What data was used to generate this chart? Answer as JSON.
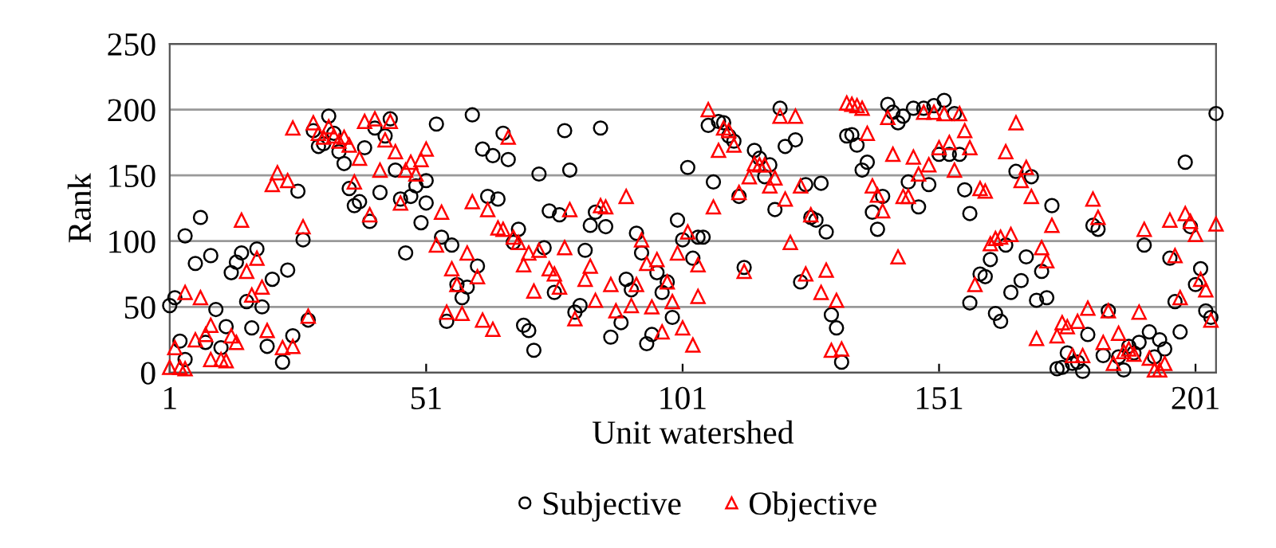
{
  "chart_data": {
    "type": "scatter",
    "xlabel": "Unit watershed",
    "ylabel": "Rank",
    "xlim": [
      1,
      205
    ],
    "xticks": [
      1,
      51,
      101,
      151,
      201
    ],
    "ylim": [
      0,
      250
    ],
    "yticks": [
      0,
      50,
      100,
      150,
      200,
      250
    ],
    "grid": "y",
    "legend": "bottom",
    "series": [
      {
        "name": "Subjective",
        "color": "#000000",
        "marker": "circle",
        "x": [
          1,
          2,
          3,
          4,
          4,
          6,
          7,
          8,
          9,
          10,
          11,
          12,
          13,
          14,
          15,
          16,
          17,
          18,
          19,
          20,
          21,
          23,
          24,
          25,
          26,
          27,
          28,
          29,
          30,
          31,
          32,
          33,
          34,
          35,
          36,
          37,
          38,
          39,
          40,
          41,
          42,
          43,
          44,
          45,
          46,
          47,
          48,
          49,
          50,
          51,
          51,
          53,
          54,
          55,
          56,
          57,
          58,
          59,
          60,
          61,
          62,
          63,
          64,
          65,
          66,
          67,
          68,
          69,
          70,
          71,
          72,
          73,
          74,
          75,
          76,
          77,
          78,
          79,
          80,
          81,
          82,
          83,
          84,
          85,
          86,
          87,
          89,
          90,
          91,
          92,
          93,
          94,
          95,
          96,
          97,
          98,
          99,
          100,
          101,
          102,
          103,
          104,
          105,
          106,
          107,
          108,
          109,
          110,
          111,
          112,
          113,
          115,
          116,
          117,
          118,
          119,
          120,
          121,
          123,
          124,
          125,
          126,
          127,
          128,
          129,
          130,
          131,
          132,
          133,
          134,
          135,
          136,
          137,
          138,
          139,
          140,
          141,
          142,
          143,
          144,
          145,
          146,
          147,
          148,
          149,
          150,
          151,
          152,
          153,
          154,
          155,
          156,
          157,
          157,
          159,
          160,
          161,
          162,
          163,
          164,
          165,
          166,
          167,
          168,
          169,
          170,
          171,
          172,
          173,
          174,
          175,
          176,
          177,
          178,
          179,
          180,
          181,
          182,
          183,
          184,
          186,
          187,
          188,
          189,
          190,
          191,
          192,
          193,
          194,
          195,
          196,
          197,
          198,
          199,
          200,
          201,
          202,
          203,
          204,
          205
        ],
        "values": [
          51,
          57,
          24,
          10,
          104,
          83,
          118,
          23,
          89,
          48,
          19,
          35,
          76,
          84,
          91,
          54,
          34,
          94,
          50,
          20,
          71,
          8,
          78,
          28,
          138,
          101,
          40,
          184,
          172,
          174,
          195,
          182,
          168,
          159,
          140,
          127,
          130,
          171,
          115,
          186,
          137,
          180,
          193,
          154,
          132,
          91,
          134,
          142,
          114,
          129,
          146,
          189,
          103,
          39,
          97,
          67,
          57,
          65,
          196,
          81,
          170,
          134,
          165,
          132,
          182,
          162,
          99,
          109,
          36,
          32,
          17,
          151,
          95,
          123,
          61,
          120,
          184,
          154,
          46,
          51,
          93,
          112,
          122,
          186,
          111,
          27,
          38,
          71,
          63,
          106,
          91,
          22,
          29,
          76,
          61,
          69,
          42,
          116,
          101,
          156,
          87,
          103,
          103,
          188,
          145,
          191,
          190,
          180,
          176,
          134,
          80,
          169,
          163,
          149,
          158,
          124,
          201,
          172,
          177,
          69,
          143,
          118,
          116,
          144,
          107,
          44,
          34,
          8,
          180,
          181,
          173,
          154,
          160,
          122,
          109,
          134,
          204,
          198,
          190,
          195,
          145,
          201,
          126,
          201,
          143,
          203,
          166,
          207,
          166,
          197,
          166,
          139,
          121,
          53,
          75,
          73,
          86,
          45,
          39,
          97,
          61,
          153,
          70,
          88,
          149,
          55,
          77,
          57,
          127,
          3,
          4,
          15,
          7,
          8,
          1,
          29,
          112,
          109,
          13,
          47,
          12,
          2,
          20,
          15,
          23,
          97,
          31,
          12,
          25,
          18,
          87,
          54,
          31,
          160,
          111,
          67,
          79,
          47,
          42,
          197
        ]
      },
      {
        "name": "Objective",
        "color": "#ff0000",
        "marker": "triangle",
        "x": [
          1,
          2,
          3,
          4,
          4,
          6,
          7,
          8,
          9,
          9,
          11,
          12,
          13,
          14,
          15,
          16,
          17,
          18,
          19,
          20,
          21,
          22,
          23,
          24,
          25,
          25,
          27,
          28,
          29,
          30,
          31,
          32,
          33,
          34,
          35,
          36,
          37,
          38,
          39,
          40,
          41,
          42,
          43,
          44,
          45,
          46,
          47,
          48,
          49,
          50,
          51,
          53,
          54,
          55,
          56,
          57,
          58,
          59,
          60,
          61,
          62,
          63,
          64,
          65,
          66,
          67,
          68,
          69,
          70,
          71,
          72,
          73,
          75,
          76,
          77,
          78,
          79,
          80,
          82,
          83,
          84,
          85,
          86,
          87,
          88,
          90,
          91,
          92,
          93,
          94,
          95,
          96,
          97,
          98,
          99,
          100,
          101,
          102,
          103,
          104,
          104,
          106,
          107,
          108,
          109,
          110,
          111,
          112,
          113,
          114,
          115,
          116,
          117,
          118,
          119,
          120,
          121,
          122,
          123,
          124,
          125,
          126,
          128,
          129,
          130,
          131,
          132,
          133,
          134,
          135,
          136,
          137,
          138,
          139,
          140,
          141,
          142,
          143,
          144,
          145,
          146,
          147,
          148,
          149,
          150,
          151,
          152,
          153,
          154,
          155,
          156,
          157,
          158,
          159,
          160,
          161,
          162,
          163,
          164,
          165,
          166,
          167,
          168,
          169,
          170,
          171,
          172,
          173,
          174,
          175,
          176,
          177,
          178,
          179,
          180,
          181,
          182,
          183,
          184,
          185,
          186,
          187,
          188,
          189,
          190,
          191,
          192,
          193,
          194,
          195,
          196,
          197,
          198,
          199,
          200,
          201,
          202,
          203,
          204,
          205
        ],
        "values": [
          4,
          19,
          4,
          3,
          61,
          25,
          57,
          29,
          36,
          10,
          10,
          9,
          28,
          23,
          116,
          77,
          59,
          87,
          65,
          32,
          143,
          152,
          19,
          146,
          20,
          186,
          111,
          43,
          190,
          182,
          179,
          187,
          180,
          176,
          179,
          173,
          145,
          163,
          191,
          120,
          193,
          154,
          177,
          191,
          168,
          129,
          154,
          160,
          151,
          162,
          170,
          97,
          122,
          46,
          79,
          67,
          45,
          91,
          130,
          73,
          40,
          124,
          33,
          110,
          109,
          179,
          103,
          99,
          82,
          91,
          62,
          93,
          79,
          75,
          65,
          95,
          124,
          41,
          71,
          81,
          55,
          127,
          126,
          67,
          47,
          134,
          51,
          67,
          101,
          83,
          50,
          86,
          31,
          69,
          54,
          91,
          34,
          107,
          21,
          58,
          82,
          200,
          126,
          169,
          186,
          184,
          173,
          137,
          77,
          149,
          159,
          158,
          158,
          142,
          148,
          195,
          132,
          99,
          195,
          142,
          75,
          120,
          61,
          78,
          17,
          55,
          18,
          205,
          204,
          203,
          201,
          182,
          142,
          135,
          123,
          194,
          166,
          88,
          134,
          134,
          164,
          151,
          198,
          158,
          198,
          171,
          197,
          175,
          154,
          197,
          184,
          171,
          67,
          140,
          138,
          98,
          102,
          103,
          168,
          105,
          190,
          146,
          156,
          134,
          26,
          95,
          85,
          112,
          28,
          38,
          35,
          13,
          39,
          13,
          49,
          132,
          118,
          23,
          47,
          7,
          30,
          16,
          18,
          14,
          46,
          109,
          11,
          2,
          2,
          7,
          116,
          89,
          57,
          121,
          115,
          105,
          71,
          63,
          40,
          113
        ]
      }
    ]
  }
}
